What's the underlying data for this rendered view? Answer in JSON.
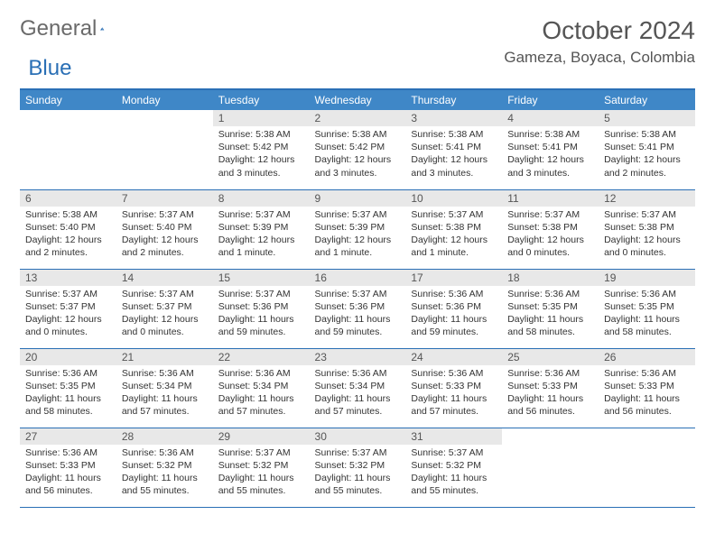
{
  "logo": {
    "part1": "General",
    "part2": "Blue"
  },
  "header": {
    "title": "October 2024",
    "location": "Gameza, Boyaca, Colombia"
  },
  "colors": {
    "header_bar": "#3f87c7",
    "border": "#2a6fb5",
    "daynum_bg": "#e8e8e8",
    "text": "#333333",
    "muted": "#555555"
  },
  "weekdays": [
    "Sunday",
    "Monday",
    "Tuesday",
    "Wednesday",
    "Thursday",
    "Friday",
    "Saturday"
  ],
  "first_weekday_index": 2,
  "days": {
    "1": {
      "sunrise": "5:38 AM",
      "sunset": "5:42 PM",
      "daylight": "12 hours and 3 minutes."
    },
    "2": {
      "sunrise": "5:38 AM",
      "sunset": "5:42 PM",
      "daylight": "12 hours and 3 minutes."
    },
    "3": {
      "sunrise": "5:38 AM",
      "sunset": "5:41 PM",
      "daylight": "12 hours and 3 minutes."
    },
    "4": {
      "sunrise": "5:38 AM",
      "sunset": "5:41 PM",
      "daylight": "12 hours and 3 minutes."
    },
    "5": {
      "sunrise": "5:38 AM",
      "sunset": "5:41 PM",
      "daylight": "12 hours and 2 minutes."
    },
    "6": {
      "sunrise": "5:38 AM",
      "sunset": "5:40 PM",
      "daylight": "12 hours and 2 minutes."
    },
    "7": {
      "sunrise": "5:37 AM",
      "sunset": "5:40 PM",
      "daylight": "12 hours and 2 minutes."
    },
    "8": {
      "sunrise": "5:37 AM",
      "sunset": "5:39 PM",
      "daylight": "12 hours and 1 minute."
    },
    "9": {
      "sunrise": "5:37 AM",
      "sunset": "5:39 PM",
      "daylight": "12 hours and 1 minute."
    },
    "10": {
      "sunrise": "5:37 AM",
      "sunset": "5:38 PM",
      "daylight": "12 hours and 1 minute."
    },
    "11": {
      "sunrise": "5:37 AM",
      "sunset": "5:38 PM",
      "daylight": "12 hours and 0 minutes."
    },
    "12": {
      "sunrise": "5:37 AM",
      "sunset": "5:38 PM",
      "daylight": "12 hours and 0 minutes."
    },
    "13": {
      "sunrise": "5:37 AM",
      "sunset": "5:37 PM",
      "daylight": "12 hours and 0 minutes."
    },
    "14": {
      "sunrise": "5:37 AM",
      "sunset": "5:37 PM",
      "daylight": "12 hours and 0 minutes."
    },
    "15": {
      "sunrise": "5:37 AM",
      "sunset": "5:36 PM",
      "daylight": "11 hours and 59 minutes."
    },
    "16": {
      "sunrise": "5:37 AM",
      "sunset": "5:36 PM",
      "daylight": "11 hours and 59 minutes."
    },
    "17": {
      "sunrise": "5:36 AM",
      "sunset": "5:36 PM",
      "daylight": "11 hours and 59 minutes."
    },
    "18": {
      "sunrise": "5:36 AM",
      "sunset": "5:35 PM",
      "daylight": "11 hours and 58 minutes."
    },
    "19": {
      "sunrise": "5:36 AM",
      "sunset": "5:35 PM",
      "daylight": "11 hours and 58 minutes."
    },
    "20": {
      "sunrise": "5:36 AM",
      "sunset": "5:35 PM",
      "daylight": "11 hours and 58 minutes."
    },
    "21": {
      "sunrise": "5:36 AM",
      "sunset": "5:34 PM",
      "daylight": "11 hours and 57 minutes."
    },
    "22": {
      "sunrise": "5:36 AM",
      "sunset": "5:34 PM",
      "daylight": "11 hours and 57 minutes."
    },
    "23": {
      "sunrise": "5:36 AM",
      "sunset": "5:34 PM",
      "daylight": "11 hours and 57 minutes."
    },
    "24": {
      "sunrise": "5:36 AM",
      "sunset": "5:33 PM",
      "daylight": "11 hours and 57 minutes."
    },
    "25": {
      "sunrise": "5:36 AM",
      "sunset": "5:33 PM",
      "daylight": "11 hours and 56 minutes."
    },
    "26": {
      "sunrise": "5:36 AM",
      "sunset": "5:33 PM",
      "daylight": "11 hours and 56 minutes."
    },
    "27": {
      "sunrise": "5:36 AM",
      "sunset": "5:33 PM",
      "daylight": "11 hours and 56 minutes."
    },
    "28": {
      "sunrise": "5:36 AM",
      "sunset": "5:32 PM",
      "daylight": "11 hours and 55 minutes."
    },
    "29": {
      "sunrise": "5:37 AM",
      "sunset": "5:32 PM",
      "daylight": "11 hours and 55 minutes."
    },
    "30": {
      "sunrise": "5:37 AM",
      "sunset": "5:32 PM",
      "daylight": "11 hours and 55 minutes."
    },
    "31": {
      "sunrise": "5:37 AM",
      "sunset": "5:32 PM",
      "daylight": "11 hours and 55 minutes."
    }
  },
  "labels": {
    "sunrise": "Sunrise:",
    "sunset": "Sunset:",
    "daylight": "Daylight:"
  }
}
